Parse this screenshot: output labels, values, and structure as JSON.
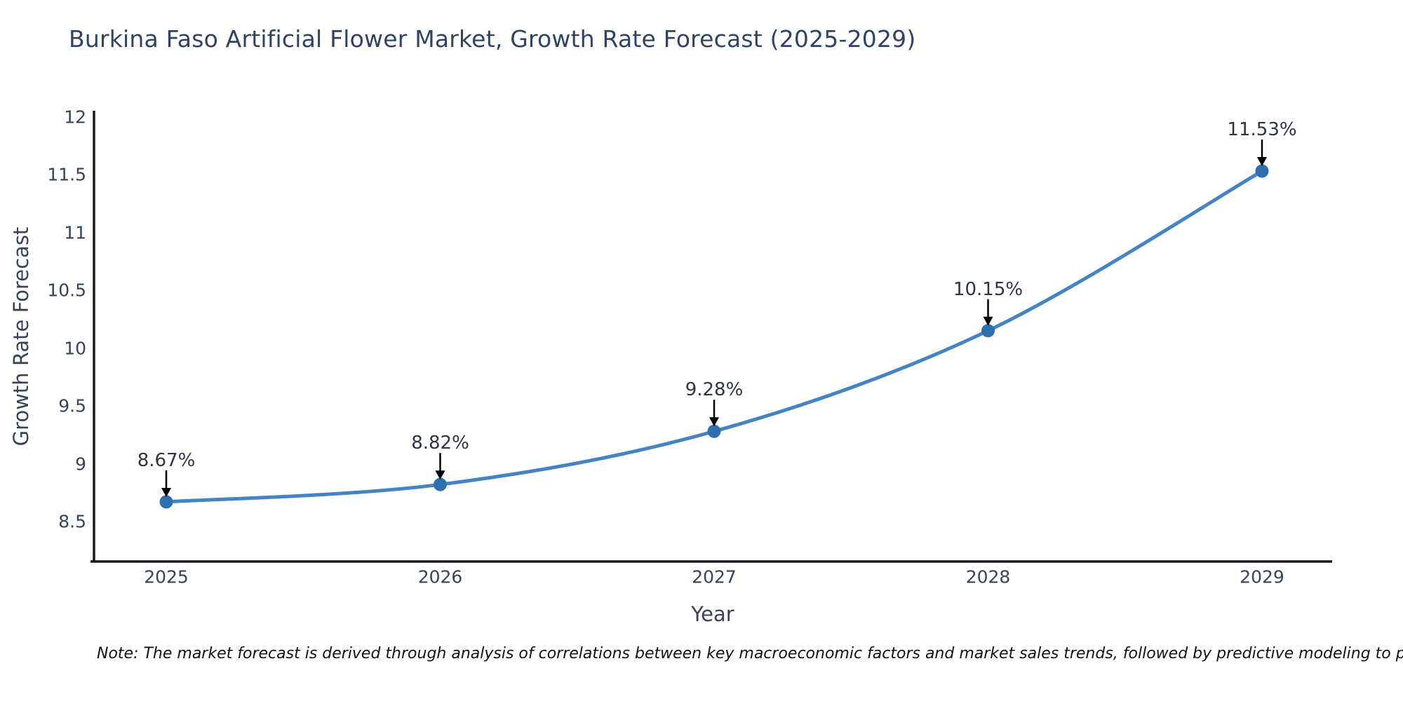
{
  "title": {
    "text": "Burkina Faso Artificial Flower Market, Growth Rate Forecast (2025-2029)",
    "color": "#2f4365"
  },
  "note": {
    "text": "Note: The market forecast is derived through analysis of correlations between key macroeconomic factors and market sales trends, followed by predictive modeling to project future sal"
  },
  "chart_data": {
    "type": "line",
    "title": "Burkina Faso Artificial Flower Market, Growth Rate Forecast (2025-2029)",
    "xlabel": "Year",
    "ylabel": "Growth Rate Forecast",
    "x": [
      2025,
      2026,
      2027,
      2028,
      2029
    ],
    "categories": [
      "2025",
      "2026",
      "2027",
      "2028",
      "2029"
    ],
    "values": [
      8.67,
      8.82,
      9.28,
      10.15,
      11.53
    ],
    "point_labels": [
      "8.67%",
      "8.82%",
      "9.28%",
      "10.15%",
      "11.53%"
    ],
    "yticks": [
      8.5,
      9,
      9.5,
      10,
      10.5,
      11,
      11.5,
      12
    ],
    "ytick_labels": [
      "8.5",
      "9",
      "9.5",
      "10",
      "10.5",
      "11",
      "11.5",
      "12"
    ],
    "ylim": [
      8.15,
      12.05
    ],
    "grid": false,
    "legend": "none",
    "marker": "circle",
    "annotation_style": "down-arrow",
    "line_color": "#4484c2",
    "marker_color": "#2e6fb0",
    "axis_color": "#17181f",
    "arrow_color": "#000000"
  }
}
